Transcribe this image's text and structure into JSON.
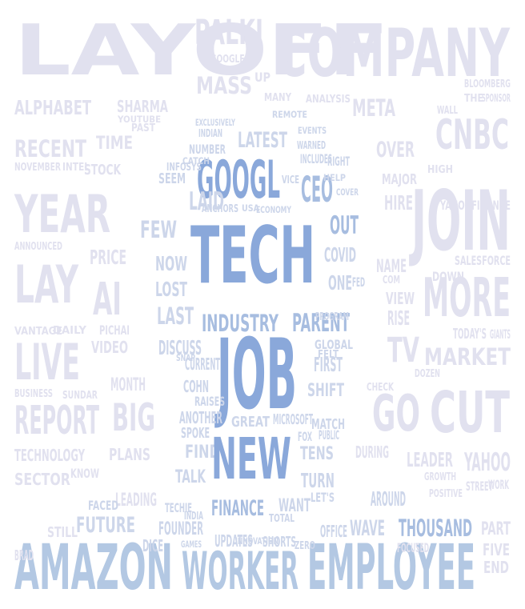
{
  "colors": {
    "pale": "#e1e1ef",
    "mid": "#cdd6ea",
    "accent_light": "#a7bde0",
    "accent": "#8aa8da",
    "bottom": "#b3c8e3",
    "faint": "#ececf5"
  },
  "words": [
    {
      "text": "LAYOFF",
      "tone": "pale"
    },
    {
      "text": "PALKI",
      "tone": "pale"
    },
    {
      "text": "COMPANY",
      "tone": "pale"
    },
    {
      "text": "GOOGLE'S",
      "tone": "pale"
    },
    {
      "text": "MASS",
      "tone": "pale"
    },
    {
      "text": "UP",
      "tone": "pale"
    },
    {
      "text": "ALPHABET",
      "tone": "pale"
    },
    {
      "text": "SHARMA",
      "tone": "pale"
    },
    {
      "text": "META",
      "tone": "pale"
    },
    {
      "text": "CNBC",
      "tone": "pale"
    },
    {
      "text": "RECENT",
      "tone": "pale"
    },
    {
      "text": "TIME",
      "tone": "pale"
    },
    {
      "text": "LATEST",
      "tone": "mid"
    },
    {
      "text": "OVER",
      "tone": "pale"
    },
    {
      "text": "STOCK",
      "tone": "pale"
    },
    {
      "text": "GOOGL",
      "tone": "accent"
    },
    {
      "text": "CEO",
      "tone": "accent_light"
    },
    {
      "text": "YEAR",
      "tone": "pale"
    },
    {
      "text": "JOIN",
      "tone": "pale"
    },
    {
      "text": "HIRE",
      "tone": "pale"
    },
    {
      "text": "LAID",
      "tone": "mid"
    },
    {
      "text": "MAJOR",
      "tone": "pale"
    },
    {
      "text": "TECH",
      "tone": "accent"
    },
    {
      "text": "OUT",
      "tone": "accent_light"
    },
    {
      "text": "FEW",
      "tone": "mid"
    },
    {
      "text": "LAY",
      "tone": "pale"
    },
    {
      "text": "PRICE",
      "tone": "pale"
    },
    {
      "text": "AI",
      "tone": "pale"
    },
    {
      "text": "NOW",
      "tone": "mid"
    },
    {
      "text": "COVID",
      "tone": "mid"
    },
    {
      "text": "MORE",
      "tone": "pale"
    },
    {
      "text": "ONE",
      "tone": "mid"
    },
    {
      "text": "LOST",
      "tone": "mid"
    },
    {
      "text": "VIEW",
      "tone": "pale"
    },
    {
      "text": "LAST",
      "tone": "mid"
    },
    {
      "text": "INDUSTRY",
      "tone": "accent_light"
    },
    {
      "text": "PARENT",
      "tone": "accent_light"
    },
    {
      "text": "RISE",
      "tone": "pale"
    },
    {
      "text": "LIVE",
      "tone": "pale"
    },
    {
      "text": "VIDEO",
      "tone": "pale"
    },
    {
      "text": "DISCUSS",
      "tone": "mid"
    },
    {
      "text": "JOB",
      "tone": "accent"
    },
    {
      "text": "TV",
      "tone": "pale"
    },
    {
      "text": "MARKET",
      "tone": "pale"
    },
    {
      "text": "CURRENT",
      "tone": "mid"
    },
    {
      "text": "FIRST",
      "tone": "mid"
    },
    {
      "text": "MONTH",
      "tone": "pale"
    },
    {
      "text": "COHN",
      "tone": "mid"
    },
    {
      "text": "SHIFT",
      "tone": "mid"
    },
    {
      "text": "REPORT",
      "tone": "pale"
    },
    {
      "text": "BIG",
      "tone": "pale"
    },
    {
      "text": "GO",
      "tone": "pale"
    },
    {
      "text": "CUT",
      "tone": "pale"
    },
    {
      "text": "ANOTHER",
      "tone": "mid"
    },
    {
      "text": "GREAT",
      "tone": "mid"
    },
    {
      "text": "MICROSOFT",
      "tone": "mid"
    },
    {
      "text": "TECHNOLOGY",
      "tone": "pale"
    },
    {
      "text": "PLANS",
      "tone": "pale"
    },
    {
      "text": "FIND",
      "tone": "mid"
    },
    {
      "text": "NEW",
      "tone": "accent"
    },
    {
      "text": "TENS",
      "tone": "mid"
    },
    {
      "text": "DURING",
      "tone": "pale"
    },
    {
      "text": "LEADER",
      "tone": "pale"
    },
    {
      "text": "YAHOO",
      "tone": "pale"
    },
    {
      "text": "SECTOR",
      "tone": "pale"
    },
    {
      "text": "TALK",
      "tone": "mid"
    },
    {
      "text": "TURN",
      "tone": "mid"
    },
    {
      "text": "LEADING",
      "tone": "pale"
    },
    {
      "text": "FINANCE",
      "tone": "accent_light"
    },
    {
      "text": "WANT",
      "tone": "mid"
    },
    {
      "text": "AROUND",
      "tone": "mid"
    },
    {
      "text": "FUTURE",
      "tone": "mid"
    },
    {
      "text": "WAVE",
      "tone": "mid"
    },
    {
      "text": "THOUSAND",
      "tone": "accent_light"
    },
    {
      "text": "STILL",
      "tone": "pale"
    },
    {
      "text": "FOUNDER",
      "tone": "mid"
    },
    {
      "text": "UPDATES",
      "tone": "mid"
    },
    {
      "text": "SHORTS",
      "tone": "mid"
    },
    {
      "text": "OFFICE",
      "tone": "mid"
    },
    {
      "text": "PART",
      "tone": "pale"
    },
    {
      "text": "FIVE",
      "tone": "pale"
    },
    {
      "text": "AMAZON",
      "tone": "bottom"
    },
    {
      "text": "WORKER",
      "tone": "bottom"
    },
    {
      "text": "EMPLOYEE",
      "tone": "bottom"
    },
    {
      "text": "END",
      "tone": "pale"
    },
    {
      "text": "INDIAN",
      "tone": "mid"
    },
    {
      "text": "NUMBER",
      "tone": "mid"
    },
    {
      "text": "WARNED",
      "tone": "mid"
    },
    {
      "text": "INCLUDES",
      "tone": "mid"
    },
    {
      "text": "RIGHT",
      "tone": "mid"
    },
    {
      "text": "SEEM",
      "tone": "mid"
    },
    {
      "text": "VICE",
      "tone": "mid"
    },
    {
      "text": "ANCHORS",
      "tone": "mid"
    },
    {
      "text": "USA",
      "tone": "mid"
    },
    {
      "text": "ECONOMY",
      "tone": "mid"
    },
    {
      "text": "ANNOUNCED",
      "tone": "pale"
    },
    {
      "text": "VANTAGE",
      "tone": "pale"
    },
    {
      "text": "DAILY",
      "tone": "pale"
    },
    {
      "text": "PICHAI",
      "tone": "pale"
    },
    {
      "text": "BUSINESS",
      "tone": "pale"
    },
    {
      "text": "SUNDAR",
      "tone": "pale"
    },
    {
      "text": "NAME",
      "tone": "pale"
    },
    {
      "text": "SALESFORCE",
      "tone": "pale"
    },
    {
      "text": "TODAY'S",
      "tone": "pale"
    },
    {
      "text": "GIANTS",
      "tone": "pale"
    },
    {
      "text": "YAHOOFINANCE",
      "tone": "pale"
    },
    {
      "text": "NOVEMBER",
      "tone": "pale"
    },
    {
      "text": "INTEL",
      "tone": "pale"
    },
    {
      "text": "FOCUSED",
      "tone": "pale"
    },
    {
      "text": "STREET",
      "tone": "pale"
    },
    {
      "text": "WORK",
      "tone": "pale"
    },
    {
      "text": "DICE",
      "tone": "mid"
    },
    {
      "text": "GAMES",
      "tone": "mid"
    },
    {
      "text": "BRAD",
      "tone": "pale"
    },
    {
      "text": "INDIA",
      "tone": "mid"
    },
    {
      "text": "RAISES",
      "tone": "mid"
    },
    {
      "text": "MATCH",
      "tone": "mid"
    },
    {
      "text": "SPOKE",
      "tone": "mid"
    },
    {
      "text": "FOX",
      "tone": "mid"
    },
    {
      "text": "PUBLIC",
      "tone": "mid"
    },
    {
      "text": "FED",
      "tone": "mid"
    },
    {
      "text": "GLOBAL",
      "tone": "mid"
    },
    {
      "text": "KNOW",
      "tone": "pale"
    },
    {
      "text": "ZERO",
      "tone": "mid"
    },
    {
      "text": "TOTAL",
      "tone": "mid"
    },
    {
      "text": "LET'S",
      "tone": "mid"
    },
    {
      "text": "FACED",
      "tone": "mid"
    },
    {
      "text": "TECHIE",
      "tone": "mid"
    },
    {
      "text": "BLOOMBERG",
      "tone": "pale"
    },
    {
      "text": "ANALYSIS",
      "tone": "pale"
    },
    {
      "text": "MANY",
      "tone": "pale"
    },
    {
      "text": "PAST",
      "tone": "pale"
    },
    {
      "text": "YOUTUBE",
      "tone": "pale"
    },
    {
      "text": "EXCLUSIVELY",
      "tone": "mid"
    },
    {
      "text": "EVENTS",
      "tone": "mid"
    },
    {
      "text": "INFOSYS",
      "tone": "mid"
    },
    {
      "text": "HELP",
      "tone": "mid"
    },
    {
      "text": "COVER",
      "tone": "mid"
    },
    {
      "text": "PROGRAM",
      "tone": "mid"
    },
    {
      "text": "SNAP",
      "tone": "mid"
    },
    {
      "text": "FELT",
      "tone": "mid"
    },
    {
      "text": "SPONSOR",
      "tone": "pale"
    },
    {
      "text": "WALL",
      "tone": "pale"
    },
    {
      "text": "THE",
      "tone": "pale"
    },
    {
      "text": "HIGH",
      "tone": "pale"
    },
    {
      "text": "DOWN",
      "tone": "pale"
    },
    {
      "text": "COM",
      "tone": "pale"
    },
    {
      "text": "DOZEN",
      "tone": "pale"
    },
    {
      "text": "CHECK",
      "tone": "pale"
    },
    {
      "text": "POSITIVE",
      "tone": "pale"
    },
    {
      "text": "GROWTH",
      "tone": "pale"
    },
    {
      "text": "INNOVATION",
      "tone": "mid"
    },
    {
      "text": "CATCH",
      "tone": "mid"
    },
    {
      "text": "REMOTE",
      "tone": "mid"
    }
  ]
}
